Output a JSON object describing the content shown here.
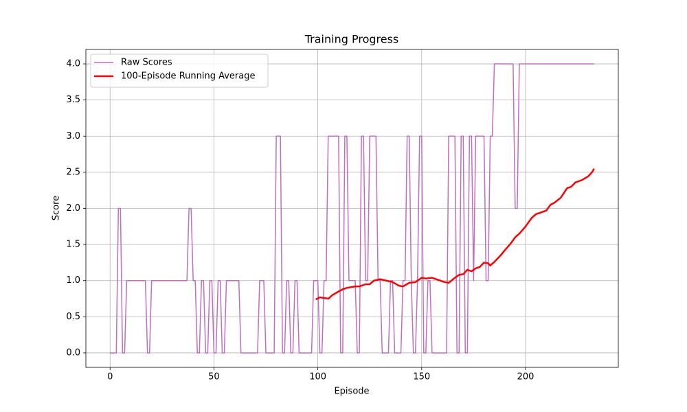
{
  "chart_data": {
    "type": "line",
    "title": "Training Progress",
    "x_label": "Episode",
    "y_label": "Score",
    "xlim": [
      -11.65,
      244.65
    ],
    "ylim": [
      -0.2,
      4.2
    ],
    "xticks": [
      0,
      50,
      100,
      150,
      200
    ],
    "yticks": [
      {
        "value": 0,
        "label": "0.0"
      },
      0.5,
      {
        "value": 1,
        "label": "1.0"
      },
      1.5,
      {
        "value": 2,
        "label": "2.0"
      },
      2.5,
      {
        "value": 3,
        "label": "3.0"
      },
      3.5,
      {
        "value": 4,
        "label": "4.0"
      }
    ],
    "grid": true,
    "legend": "upper left",
    "series": [
      {
        "name": "Raw Scores",
        "color": "#bf6fbf",
        "width": 1.5,
        "x": [
          0,
          1,
          2,
          3,
          4,
          5,
          6,
          7,
          8,
          9,
          10,
          11,
          12,
          13,
          14,
          15,
          16,
          17,
          18,
          19,
          20,
          21,
          22,
          23,
          24,
          25,
          26,
          27,
          28,
          29,
          30,
          31,
          32,
          33,
          34,
          35,
          36,
          37,
          38,
          39,
          40,
          41,
          42,
          43,
          44,
          45,
          46,
          47,
          48,
          49,
          50,
          51,
          52,
          53,
          54,
          55,
          56,
          57,
          58,
          59,
          60,
          61,
          62,
          63,
          64,
          65,
          66,
          67,
          68,
          69,
          70,
          71,
          72,
          73,
          74,
          75,
          76,
          77,
          78,
          79,
          80,
          81,
          82,
          83,
          84,
          85,
          86,
          87,
          88,
          89,
          90,
          91,
          92,
          93,
          94,
          95,
          96,
          97,
          98,
          99,
          100,
          101,
          102,
          103,
          104,
          105,
          106,
          107,
          108,
          109,
          110,
          111,
          112,
          113,
          114,
          115,
          116,
          117,
          118,
          119,
          120,
          121,
          122,
          123,
          124,
          125,
          126,
          127,
          128,
          129,
          130,
          131,
          132,
          133,
          134,
          135,
          136,
          137,
          138,
          139,
          140,
          141,
          142,
          143,
          144,
          145,
          146,
          147,
          148,
          149,
          150,
          151,
          152,
          153,
          154,
          155,
          156,
          157,
          158,
          159,
          160,
          161,
          162,
          163,
          164,
          165,
          166,
          167,
          168,
          169,
          170,
          171,
          172,
          173,
          174,
          175,
          176,
          177,
          178,
          179,
          180,
          181,
          182,
          183,
          184,
          185,
          186,
          187,
          188,
          189,
          190,
          191,
          192,
          193,
          194,
          195,
          196,
          197,
          198,
          199,
          200,
          201,
          202,
          203,
          204,
          205,
          206,
          207,
          208,
          209,
          210,
          211,
          212,
          213,
          214,
          215,
          216,
          217,
          218,
          219,
          220,
          221,
          222,
          223,
          224,
          225,
          226,
          227,
          228,
          229,
          230,
          231,
          232,
          233
        ],
        "values": [
          0,
          0,
          0,
          0,
          2,
          2,
          0,
          0,
          1,
          1,
          1,
          1,
          1,
          1,
          1,
          1,
          1,
          1,
          0,
          0,
          1,
          1,
          1,
          1,
          1,
          1,
          1,
          1,
          1,
          1,
          1,
          1,
          1,
          1,
          1,
          1,
          1,
          1,
          2,
          2,
          1,
          1,
          0,
          0,
          1,
          1,
          0,
          0,
          1,
          1,
          0,
          0,
          1,
          1,
          0,
          0,
          1,
          1,
          1,
          1,
          1,
          1,
          1,
          0,
          0,
          0,
          0,
          0,
          0,
          0,
          0,
          0,
          1,
          1,
          1,
          0,
          0,
          0,
          0,
          0,
          3,
          3,
          3,
          0,
          0,
          1,
          1,
          0,
          0,
          1,
          1,
          0,
          0,
          0,
          0,
          0,
          0,
          0,
          1,
          1,
          1,
          0,
          0,
          1,
          1,
          3,
          3,
          3,
          3,
          3,
          3,
          0,
          0,
          3,
          3,
          1,
          1,
          1,
          1,
          0,
          0,
          3,
          3,
          1,
          1,
          3,
          3,
          3,
          3,
          1,
          1,
          0,
          0,
          0,
          0,
          1,
          1,
          0,
          0,
          0,
          0,
          1,
          1,
          3,
          3,
          1,
          0,
          0,
          1,
          3,
          3,
          0,
          0,
          1,
          1,
          0,
          0,
          0,
          0,
          0,
          0,
          0,
          0,
          3,
          3,
          3,
          3,
          0,
          0,
          3,
          3,
          0,
          0,
          3,
          3,
          1,
          3,
          3,
          3,
          3,
          3,
          1,
          1,
          3,
          3,
          4,
          4,
          4,
          4,
          4,
          4,
          4,
          4,
          4,
          4,
          2,
          2,
          4,
          4,
          4,
          4,
          4,
          4,
          4,
          4,
          4,
          4,
          4,
          4,
          4,
          4,
          4,
          4,
          4,
          4,
          4,
          4,
          4,
          4,
          4,
          4,
          4,
          4,
          4,
          4,
          4,
          4,
          4,
          4,
          4,
          4,
          4,
          4,
          4
        ]
      },
      {
        "name": "100-Episode Running Average",
        "color": "#ff0000",
        "width": 2.5,
        "x": [
          99,
          101,
          103,
          105,
          107,
          110,
          112,
          114,
          116,
          118,
          120,
          123,
          125,
          127,
          130,
          133,
          136,
          139,
          141,
          144,
          147,
          150,
          152,
          155,
          158,
          161,
          163,
          166,
          168,
          170,
          172,
          174,
          176,
          178,
          180,
          182,
          183,
          185,
          188,
          190,
          193,
          195,
          197,
          200,
          203,
          205,
          208,
          210,
          212,
          214,
          217,
          220,
          222,
          224,
          227,
          230,
          232,
          233
        ],
        "values": [
          0.74,
          0.77,
          0.76,
          0.75,
          0.8,
          0.85,
          0.88,
          0.9,
          0.91,
          0.92,
          0.92,
          0.95,
          0.95,
          1.0,
          1.02,
          1.0,
          0.98,
          0.93,
          0.92,
          0.97,
          0.98,
          1.04,
          1.03,
          1.04,
          1.01,
          0.98,
          0.97,
          1.04,
          1.08,
          1.09,
          1.15,
          1.13,
          1.17,
          1.19,
          1.25,
          1.24,
          1.21,
          1.26,
          1.35,
          1.42,
          1.52,
          1.6,
          1.65,
          1.75,
          1.87,
          1.92,
          1.95,
          1.97,
          2.05,
          2.08,
          2.15,
          2.28,
          2.3,
          2.36,
          2.39,
          2.44,
          2.5,
          2.55
        ]
      }
    ]
  }
}
